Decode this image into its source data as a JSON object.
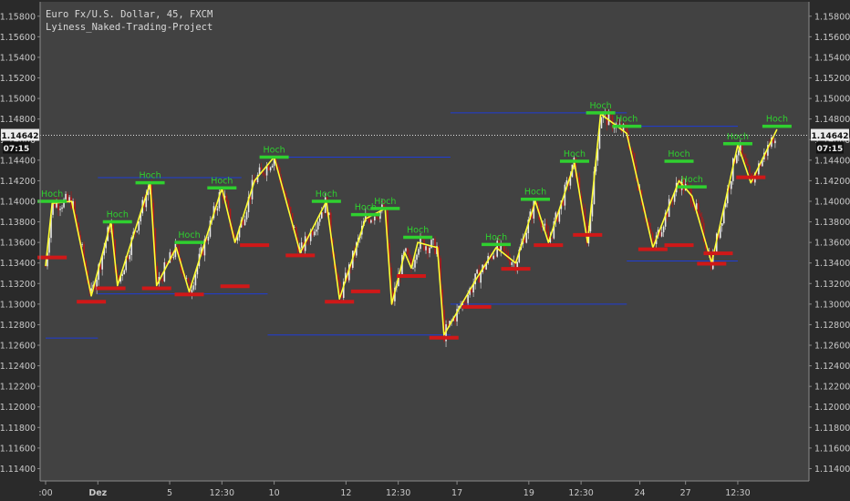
{
  "title": {
    "line1": "Euro Fx/U.S. Dollar, 45, FXCM",
    "line2": "Lyiness_Naked-Trading-Project"
  },
  "colors": {
    "background": "#2a2a2a",
    "plot": "#424242",
    "zigzag": "#ffff33",
    "hoch": "#2fd02f",
    "tief": "#d01818",
    "blue_level": "#1f3dd6",
    "candle_up": "#e8e8e8",
    "candle_down": "#b01818"
  },
  "chart_data": {
    "type": "line",
    "symbol": "EURUSD 45",
    "ylim": [
      1.1128,
      1.1594
    ],
    "y_ticks": [
      "1.11400",
      "1.11600",
      "1.11800",
      "1.12000",
      "1.12200",
      "1.12400",
      "1.12600",
      "1.12800",
      "1.13000",
      "1.13200",
      "1.13400",
      "1.13600",
      "1.13800",
      "1.14000",
      "1.14200",
      "1.14400",
      "1.14600",
      "1.14800",
      "1.15000",
      "1.15200",
      "1.15400",
      "1.15600",
      "1.15800"
    ],
    "x_ticks": [
      {
        "label": ":00",
        "x": 0
      },
      {
        "label": "Dez",
        "x": 8,
        "bold": true
      },
      {
        "label": "5",
        "x": 19
      },
      {
        "label": "12:30",
        "x": 27
      },
      {
        "label": "10",
        "x": 35
      },
      {
        "label": "12",
        "x": 46
      },
      {
        "label": "12:30",
        "x": 54
      },
      {
        "label": "17",
        "x": 63
      },
      {
        "label": "19",
        "x": 74
      },
      {
        "label": "12:30",
        "x": 82
      },
      {
        "label": "24",
        "x": 91
      },
      {
        "label": "27",
        "x": 98
      },
      {
        "label": "12:30",
        "x": 106
      }
    ],
    "current_price": {
      "label": "1.14642",
      "value": 1.14642,
      "time_label": "07:15"
    },
    "zigzag": [
      [
        0,
        1.1337
      ],
      [
        1,
        1.1398
      ],
      [
        4,
        1.14
      ],
      [
        7,
        1.1308
      ],
      [
        10,
        1.138
      ],
      [
        11,
        1.1318
      ],
      [
        16,
        1.1418
      ],
      [
        17,
        1.1318
      ],
      [
        20,
        1.1355
      ],
      [
        22,
        1.1312
      ],
      [
        27,
        1.1413
      ],
      [
        29,
        1.136
      ],
      [
        32,
        1.142
      ],
      [
        35,
        1.1443
      ],
      [
        39,
        1.135
      ],
      [
        43,
        1.14
      ],
      [
        45,
        1.1305
      ],
      [
        49,
        1.1383
      ],
      [
        52,
        1.1393
      ],
      [
        53,
        1.13
      ],
      [
        55,
        1.135
      ],
      [
        56,
        1.1335
      ],
      [
        57,
        1.136
      ],
      [
        60,
        1.1355
      ],
      [
        61,
        1.127
      ],
      [
        66,
        1.1325
      ],
      [
        69,
        1.1355
      ],
      [
        72,
        1.134
      ],
      [
        75,
        1.14
      ],
      [
        77,
        1.136
      ],
      [
        81,
        1.1437
      ],
      [
        83,
        1.136
      ],
      [
        85,
        1.1485
      ],
      [
        89,
        1.1466
      ],
      [
        93,
        1.1355
      ],
      [
        97,
        1.142
      ],
      [
        99,
        1.1405
      ],
      [
        102,
        1.134
      ],
      [
        106,
        1.1455
      ],
      [
        108,
        1.1418
      ],
      [
        112,
        1.147
      ]
    ],
    "hoch_markers": [
      {
        "x": 1,
        "y": 1.14,
        "label": "Hoch"
      },
      {
        "x": 11,
        "y": 1.138,
        "label": "Hoch"
      },
      {
        "x": 16,
        "y": 1.1418,
        "label": "Hoch"
      },
      {
        "x": 22,
        "y": 1.136,
        "label": "Hoch"
      },
      {
        "x": 27,
        "y": 1.1413,
        "label": "Hoch"
      },
      {
        "x": 35,
        "y": 1.1443,
        "label": "Hoch"
      },
      {
        "x": 43,
        "y": 1.14,
        "label": "Hoch"
      },
      {
        "x": 49,
        "y": 1.1387,
        "label": "Hoch"
      },
      {
        "x": 52,
        "y": 1.1393,
        "label": "Hoch"
      },
      {
        "x": 57,
        "y": 1.1365,
        "label": "Hoch"
      },
      {
        "x": 69,
        "y": 1.1358,
        "label": "Hoch"
      },
      {
        "x": 75,
        "y": 1.1402,
        "label": "Hoch"
      },
      {
        "x": 81,
        "y": 1.1439,
        "label": "Hoch"
      },
      {
        "x": 85,
        "y": 1.1486,
        "label": "Hoch"
      },
      {
        "x": 89,
        "y": 1.1473,
        "label": "Hoch"
      },
      {
        "x": 97,
        "y": 1.1439,
        "label": "Hoch"
      },
      {
        "x": 99,
        "y": 1.1414,
        "label": "Hoch"
      },
      {
        "x": 106,
        "y": 1.1456,
        "label": "Hoch"
      },
      {
        "x": 112,
        "y": 1.1473,
        "label": "Hoch"
      }
    ],
    "tief_markers": [
      {
        "x": 1,
        "y": 1.1348
      },
      {
        "x": 7,
        "y": 1.1305
      },
      {
        "x": 10,
        "y": 1.1318
      },
      {
        "x": 17,
        "y": 1.1318
      },
      {
        "x": 22,
        "y": 1.1312
      },
      {
        "x": 29,
        "y": 1.132
      },
      {
        "x": 32,
        "y": 1.136
      },
      {
        "x": 39,
        "y": 1.135
      },
      {
        "x": 45,
        "y": 1.1305
      },
      {
        "x": 49,
        "y": 1.1315
      },
      {
        "x": 56,
        "y": 1.133
      },
      {
        "x": 61,
        "y": 1.127
      },
      {
        "x": 66,
        "y": 1.13
      },
      {
        "x": 72,
        "y": 1.1337
      },
      {
        "x": 77,
        "y": 1.136
      },
      {
        "x": 83,
        "y": 1.137
      },
      {
        "x": 93,
        "y": 1.1356
      },
      {
        "x": 97,
        "y": 1.136
      },
      {
        "x": 102,
        "y": 1.1342
      },
      {
        "x": 103,
        "y": 1.1352
      },
      {
        "x": 108,
        "y": 1.1426
      }
    ],
    "blue_levels": [
      {
        "x1": 0,
        "x2": 8,
        "y": 1.1267
      },
      {
        "x1": 8,
        "x2": 34,
        "y": 1.131
      },
      {
        "x1": 8,
        "x2": 30,
        "y": 1.1423
      },
      {
        "x1": 34,
        "x2": 62,
        "y": 1.1443
      },
      {
        "x1": 34,
        "x2": 62,
        "y": 1.127
      },
      {
        "x1": 62,
        "x2": 89,
        "y": 1.13
      },
      {
        "x1": 62,
        "x2": 89,
        "y": 1.1486
      },
      {
        "x1": 89,
        "x2": 106,
        "y": 1.1473
      },
      {
        "x1": 89,
        "x2": 106,
        "y": 1.1342
      }
    ]
  }
}
